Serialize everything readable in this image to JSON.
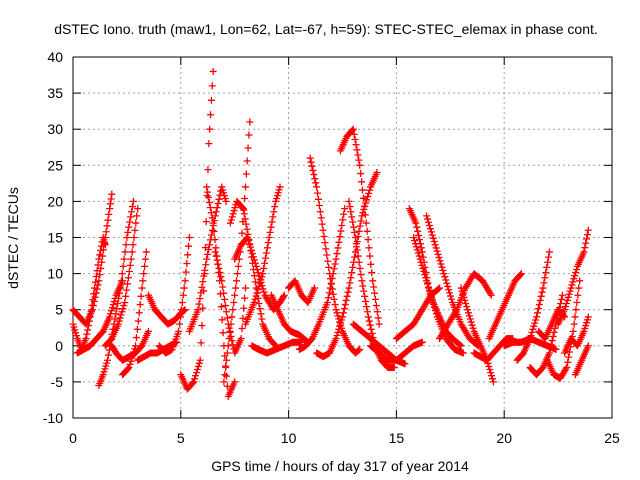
{
  "chart_data": {
    "type": "scatter",
    "title": "dSTEC Iono. truth (maw1, Lon=62, Lat=-67, h=59): STEC-STEC_elemax in phase cont.",
    "xlabel": "GPS time / hours of day 317 of year 2014",
    "ylabel": "dSTEC  / TECUs",
    "xlim": [
      0,
      25
    ],
    "ylim": [
      -10,
      40
    ],
    "xticks": [
      0,
      5,
      10,
      15,
      20,
      25
    ],
    "yticks": [
      -10,
      -5,
      0,
      5,
      10,
      15,
      20,
      25,
      30,
      35,
      40
    ],
    "grid": true,
    "marker": "+",
    "color": "#ff0000",
    "series": [
      {
        "x": [
          0.0,
          0.2,
          0.4,
          0.6,
          0.8,
          1.0,
          1.2,
          1.4,
          1.5
        ],
        "y": [
          3,
          1,
          -0.5,
          1,
          4,
          8,
          12,
          15,
          14
        ]
      },
      {
        "x": [
          0.0,
          0.3,
          0.6,
          0.9,
          1.2,
          1.5,
          1.7,
          1.8
        ],
        "y": [
          5,
          4,
          3,
          5,
          9,
          15,
          19,
          21
        ]
      },
      {
        "x": [
          0.2,
          0.5,
          0.8,
          1.1,
          1.4,
          1.7,
          2.0,
          2.3
        ],
        "y": [
          -1,
          -0.5,
          0,
          1,
          2,
          4,
          7,
          9
        ]
      },
      {
        "x": [
          1.2,
          1.4,
          1.6,
          1.9,
          2.2,
          2.5,
          2.8
        ],
        "y": [
          -5.5,
          -4,
          -2,
          3,
          8,
          15,
          20
        ]
      },
      {
        "x": [
          1.5,
          1.8,
          2.1,
          2.4,
          2.7,
          3.0
        ],
        "y": [
          0,
          1,
          3,
          6,
          12,
          19
        ]
      },
      {
        "x": [
          2.3,
          2.6,
          2.9,
          3.2,
          3.4
        ],
        "y": [
          -4,
          -3,
          0,
          8,
          13
        ]
      },
      {
        "x": [
          1.8,
          2.0,
          2.3,
          2.6,
          2.9,
          3.2,
          3.5
        ],
        "y": [
          0,
          -1,
          -2,
          -1.5,
          -1,
          0,
          2
        ]
      },
      {
        "x": [
          3.5,
          3.8,
          4.1,
          4.4,
          4.7,
          5.0,
          5.2
        ],
        "y": [
          7,
          5,
          4,
          3,
          3.5,
          4.5,
          5
        ]
      },
      {
        "x": [
          4.0,
          4.3,
          4.6,
          4.9,
          5.2,
          5.4
        ],
        "y": [
          0,
          -1,
          -0.5,
          2,
          9,
          15
        ]
      },
      {
        "x": [
          3.0,
          3.3,
          3.6,
          3.9,
          4.2,
          4.5,
          4.8
        ],
        "y": [
          -2,
          -1.5,
          -1,
          -1,
          -0.5,
          0,
          0.5
        ]
      },
      {
        "x": [
          5.0,
          5.3,
          5.6,
          5.9,
          6.1,
          6.3,
          6.5
        ],
        "y": [
          -4,
          -6,
          -5,
          -2,
          10,
          28,
          38
        ]
      },
      {
        "x": [
          5.4,
          5.8,
          6.2,
          6.6,
          6.9,
          7.1
        ],
        "y": [
          2,
          5,
          12,
          18,
          22,
          20
        ]
      },
      {
        "x": [
          6.2,
          6.5,
          6.8,
          7.0,
          7.2,
          7.5
        ],
        "y": [
          22,
          17,
          9,
          0,
          -7,
          -5
        ]
      },
      {
        "x": [
          6.6,
          6.9,
          7.2,
          7.5,
          7.8,
          8.0
        ],
        "y": [
          13,
          9,
          3,
          -1,
          1,
          8
        ]
      },
      {
        "x": [
          7.0,
          7.2,
          7.5,
          7.8,
          8.0,
          8.2
        ],
        "y": [
          -5,
          0,
          7,
          14,
          22,
          31
        ]
      },
      {
        "x": [
          7.3,
          7.6,
          7.9,
          8.2,
          8.5,
          8.8,
          9.1,
          9.4
        ],
        "y": [
          17,
          20,
          19,
          14,
          8,
          3,
          1,
          0
        ]
      },
      {
        "x": [
          7.5,
          7.8,
          8.1,
          8.5,
          8.9,
          9.3,
          9.6,
          9.8
        ],
        "y": [
          12,
          14,
          15,
          11,
          7,
          5,
          6,
          7
        ]
      },
      {
        "x": [
          8.3,
          8.6,
          9.0,
          9.4,
          9.8,
          10.2,
          10.6
        ],
        "y": [
          0,
          -0.5,
          -1,
          -0.5,
          0,
          0.5,
          0.5
        ]
      },
      {
        "x": [
          8.0,
          8.4,
          8.8,
          9.1,
          9.4,
          9.6
        ],
        "y": [
          3,
          6,
          10,
          15,
          20,
          22
        ]
      },
      {
        "x": [
          9.2,
          9.5,
          9.8,
          10.1,
          10.5,
          10.9
        ],
        "y": [
          7,
          5,
          3,
          2,
          1.5,
          0.5
        ]
      },
      {
        "x": [
          10.0,
          10.3,
          10.6,
          10.9,
          11.2
        ],
        "y": [
          8,
          9,
          7,
          6,
          8
        ]
      },
      {
        "x": [
          10.5,
          10.8,
          11.1,
          11.4,
          11.8,
          12.2,
          12.6
        ],
        "y": [
          -0.5,
          0,
          1,
          3,
          6,
          12,
          19
        ]
      },
      {
        "x": [
          11.0,
          11.3,
          11.6,
          11.9,
          12.2,
          12.5,
          12.8,
          13.1,
          13.3
        ],
        "y": [
          26,
          22,
          16,
          10,
          5,
          2,
          0,
          -1,
          -0.5
        ]
      },
      {
        "x": [
          11.3,
          11.6,
          11.9,
          12.2,
          12.5,
          12.8,
          13.1,
          13.4,
          13.8,
          14.1
        ],
        "y": [
          -1,
          -1.5,
          -1,
          1,
          4,
          8,
          13,
          18,
          22,
          24
        ]
      },
      {
        "x": [
          12.4,
          12.7,
          13.0,
          13.3,
          13.6,
          13.9,
          14.2
        ],
        "y": [
          27,
          29,
          30,
          25,
          17,
          9,
          3
        ]
      },
      {
        "x": [
          12.8,
          13.1,
          13.4,
          13.7,
          14.0,
          14.3,
          14.6,
          14.9
        ],
        "y": [
          20,
          15,
          9,
          4,
          0,
          -2,
          -3,
          -3
        ]
      },
      {
        "x": [
          13.0,
          13.4,
          13.8,
          14.2,
          14.6,
          15.0,
          15.4
        ],
        "y": [
          3,
          2,
          1,
          0,
          -1,
          -2,
          -2.5
        ]
      },
      {
        "x": [
          13.8,
          14.2,
          14.6,
          15.0,
          15.4,
          15.8,
          16.2
        ],
        "y": [
          0,
          -1,
          -2,
          -2,
          -1,
          0,
          0.5
        ]
      },
      {
        "x": [
          15.6,
          15.9,
          16.2,
          16.5,
          16.9,
          17.3,
          17.7,
          18.1
        ],
        "y": [
          19,
          17,
          13,
          8,
          4,
          1,
          -0.5,
          -1
        ]
      },
      {
        "x": [
          15.8,
          16.1,
          16.4,
          16.7,
          17.0,
          17.3,
          17.6,
          18.0
        ],
        "y": [
          15,
          12,
          9,
          6,
          4,
          2,
          1,
          0
        ]
      },
      {
        "x": [
          16.4,
          16.8,
          17.2,
          17.6,
          18.0,
          18.4,
          18.8
        ],
        "y": [
          18,
          14,
          10,
          6,
          3,
          1,
          0
        ]
      },
      {
        "x": [
          15.0,
          15.4,
          15.8,
          16.2,
          16.6,
          17.0
        ],
        "y": [
          1,
          2,
          3,
          5,
          7,
          8
        ]
      },
      {
        "x": [
          17.0,
          17.4,
          17.8,
          18.2,
          18.6,
          19.0,
          19.4
        ],
        "y": [
          1,
          3,
          5,
          8,
          10,
          9,
          7
        ]
      },
      {
        "x": [
          18.0,
          18.3,
          18.6,
          18.9,
          19.2,
          19.5
        ],
        "y": [
          8,
          5,
          2,
          0,
          -2,
          -5
        ]
      },
      {
        "x": [
          18.6,
          18.9,
          19.2,
          19.5,
          19.8,
          20.1,
          20.4
        ],
        "y": [
          -1,
          -1.5,
          -2,
          -1,
          0,
          1,
          1
        ]
      },
      {
        "x": [
          19.3,
          19.6,
          19.9,
          20.2,
          20.5,
          20.8
        ],
        "y": [
          1,
          3,
          5,
          7,
          9,
          10
        ]
      },
      {
        "x": [
          20.0,
          20.4,
          20.8,
          21.2,
          21.6,
          22.0,
          22.4
        ],
        "y": [
          0,
          0.5,
          0.5,
          1,
          0.5,
          0,
          -0.5
        ]
      },
      {
        "x": [
          20.6,
          20.9,
          21.2,
          21.5,
          21.8,
          22.1
        ],
        "y": [
          -2,
          -1,
          1,
          4,
          8,
          13
        ]
      },
      {
        "x": [
          21.2,
          21.5,
          21.8,
          22.1,
          22.4,
          22.7
        ],
        "y": [
          -3,
          -4,
          -3,
          -1,
          3,
          7
        ]
      },
      {
        "x": [
          22.0,
          22.3,
          22.6,
          22.9,
          23.2,
          23.5
        ],
        "y": [
          -2,
          -4,
          -4.5,
          -3,
          2,
          9
        ]
      },
      {
        "x": [
          22.5,
          22.8,
          23.1,
          23.4,
          23.7,
          23.9
        ],
        "y": [
          3,
          5,
          8,
          11,
          13,
          16
        ]
      },
      {
        "x": [
          22.8,
          23.1,
          23.4,
          23.7,
          23.9
        ],
        "y": [
          -1,
          1,
          0,
          2,
          4
        ]
      },
      {
        "x": [
          23.3,
          23.6,
          23.9
        ],
        "y": [
          -4,
          -2,
          0
        ]
      },
      {
        "x": [
          21.6,
          21.9,
          22.2,
          22.5,
          22.8
        ],
        "y": [
          2,
          1,
          3,
          5,
          4
        ]
      }
    ]
  }
}
